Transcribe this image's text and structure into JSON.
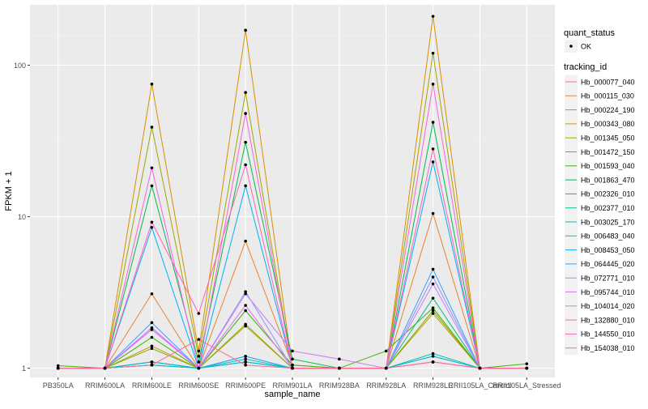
{
  "chart_data": {
    "type": "line",
    "xlabel": "sample_name",
    "ylabel": "FPKM + 1",
    "y_scale": "log10",
    "ylim": [
      0.87,
      250
    ],
    "y_ticks": [
      {
        "value": 1,
        "label": "1"
      },
      {
        "value": 10,
        "label": "10"
      },
      {
        "value": 100,
        "label": "100"
      }
    ],
    "grid": true,
    "legend_position": "right",
    "categories": [
      "PB350LA",
      "RRIM600LA",
      "RRIM600LE",
      "RRIM600SE",
      "RRIM600PE",
      "RRIM901LA",
      "RRIM928BA",
      "RRIM928LA",
      "RRIM928LE",
      "RRII105LA_Control",
      "RRII105LA_Stressed"
    ],
    "legend_shape": {
      "title": "quant_status",
      "items": [
        "OK"
      ]
    },
    "legend_color": {
      "title": "tracking_id"
    },
    "series": [
      {
        "name": "Hb_000077_040",
        "color": "#F8766D",
        "values": [
          1,
          1,
          1.1,
          1,
          1.1,
          1,
          1,
          1,
          1.1,
          1,
          1
        ]
      },
      {
        "name": "Hb_000115_030",
        "color": "#EA8331",
        "values": [
          1,
          1,
          3.1,
          1,
          6.9,
          1.05,
          1,
          1,
          10.5,
          1,
          1
        ]
      },
      {
        "name": "Hb_000224_190",
        "color": "#D89000",
        "values": [
          1,
          1,
          75,
          1.3,
          170,
          1,
          1,
          1,
          210,
          1,
          1
        ]
      },
      {
        "name": "Hb_000343_080",
        "color": "#C09B00",
        "values": [
          1,
          1,
          1.4,
          1,
          1.9,
          1,
          1,
          1,
          2.3,
          1,
          1
        ]
      },
      {
        "name": "Hb_001345_050",
        "color": "#A3A500",
        "values": [
          1,
          1,
          39,
          1.2,
          66,
          1,
          1,
          1,
          120,
          1,
          1
        ]
      },
      {
        "name": "Hb_001472_150",
        "color": "#7CAE00",
        "values": [
          1,
          1,
          1.35,
          1,
          1.95,
          1,
          1,
          1,
          2.4,
          1,
          1
        ]
      },
      {
        "name": "Hb_001593_040",
        "color": "#39B600",
        "values": [
          1.04,
          1,
          1.6,
          1,
          2.4,
          1.05,
          1,
          1.3,
          2.5,
          1,
          1.07
        ]
      },
      {
        "name": "Hb_001863_470",
        "color": "#00BB4E",
        "values": [
          1,
          1,
          16,
          1.1,
          31,
          1.15,
          1,
          1,
          42,
          1,
          1
        ]
      },
      {
        "name": "Hb_002326_010",
        "color": "#00BF7D",
        "values": [
          1,
          1,
          1.1,
          1,
          1.2,
          1,
          1,
          1,
          2.9,
          1,
          1
        ]
      },
      {
        "name": "Hb_002377_010",
        "color": "#00C1A3",
        "values": [
          1,
          1,
          1.05,
          1,
          1.1,
          1,
          1,
          1,
          1.25,
          1,
          1
        ]
      },
      {
        "name": "Hb_003025_170",
        "color": "#00BFC4",
        "values": [
          1,
          1,
          1.05,
          1,
          1.15,
          1,
          1,
          1,
          1.2,
          1,
          1
        ]
      },
      {
        "name": "Hb_006483_040",
        "color": "#00BAE0",
        "values": [
          1,
          1,
          1.1,
          1,
          1.1,
          1,
          1,
          1,
          1.2,
          1,
          1
        ]
      },
      {
        "name": "Hb_008453_050",
        "color": "#00B0F6",
        "values": [
          1,
          1,
          8.5,
          1,
          16,
          1,
          1,
          1,
          23,
          1,
          1
        ]
      },
      {
        "name": "Hb_064445_020",
        "color": "#35A2FF",
        "values": [
          1,
          1,
          2.0,
          1,
          1.2,
          1,
          1,
          1,
          4.5,
          1,
          1
        ]
      },
      {
        "name": "Hb_072771_010",
        "color": "#9590FF",
        "values": [
          1,
          1,
          1.8,
          1,
          3.2,
          1,
          1,
          1,
          4.0,
          1,
          1
        ]
      },
      {
        "name": "Hb_095744_010",
        "color": "#C77CFF",
        "values": [
          1,
          1,
          1.8,
          1,
          3.1,
          1.3,
          1.15,
          1,
          3.6,
          1,
          1
        ]
      },
      {
        "name": "Hb_104014_020",
        "color": "#E76BF3",
        "values": [
          1,
          1,
          1.85,
          1,
          2.6,
          1,
          1,
          1,
          1.1,
          1,
          1
        ]
      },
      {
        "name": "Hb_132880_010",
        "color": "#FA62DB",
        "values": [
          1,
          1,
          21,
          1,
          48,
          1,
          1,
          1,
          75,
          1,
          1
        ]
      },
      {
        "name": "Hb_144550_010",
        "color": "#FF62BC",
        "values": [
          1,
          1,
          9.2,
          2.3,
          22,
          1,
          1,
          1,
          28,
          1,
          1
        ]
      },
      {
        "name": "Hb_154038_010",
        "color": "#FF6C91",
        "values": [
          1,
          1,
          1.05,
          1.55,
          1.05,
          1,
          1,
          1,
          1.1,
          1,
          1
        ]
      }
    ]
  }
}
